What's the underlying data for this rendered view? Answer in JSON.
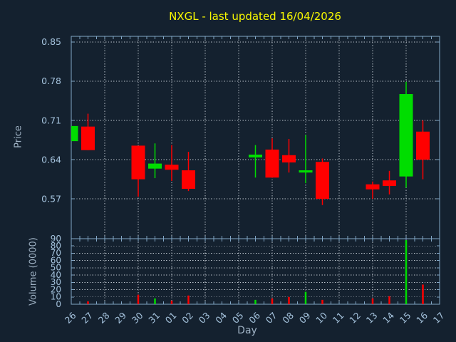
{
  "colors": {
    "background": "#14212f",
    "frame": "#82a6c6",
    "grid": "#bcc4cc",
    "title": "#f8f800",
    "tick_text": "#a5c3dd",
    "axis_text": "#9fb2c4",
    "up": "#00dd00",
    "down": "#ff0000"
  },
  "chart_data": {
    "type": "candlestick",
    "title": "NXGL - last updated 16/04/2026",
    "xlabel": "Day",
    "categories": [
      "26",
      "27",
      "28",
      "29",
      "30",
      "31",
      "01",
      "02",
      "03",
      "04",
      "05",
      "06",
      "07",
      "08",
      "09",
      "10",
      "11",
      "12",
      "13",
      "14",
      "15",
      "16",
      "17"
    ],
    "grid": "dotted, every 2 days vertical",
    "price_axis": {
      "label": "Price",
      "ticks": [
        0.85,
        0.78,
        0.71,
        0.64,
        0.57
      ],
      "ylim": [
        0.499,
        0.86
      ]
    },
    "volume_axis": {
      "label": "Volume (0000)",
      "ticks": [
        90,
        80,
        70,
        60,
        50,
        40,
        30,
        20,
        10,
        0
      ],
      "ylim": [
        0,
        90
      ]
    },
    "candles": [
      {
        "day": "26",
        "open": 0.673,
        "high": 0.7,
        "low": 0.673,
        "close": 0.7,
        "volume": 0
      },
      {
        "day": "27",
        "open": 0.699,
        "high": 0.722,
        "low": 0.657,
        "close": 0.657,
        "volume": 4
      },
      {
        "day": "30",
        "open": 0.665,
        "high": 0.665,
        "low": 0.574,
        "close": 0.605,
        "volume": 13
      },
      {
        "day": "31",
        "open": 0.624,
        "high": 0.669,
        "low": 0.607,
        "close": 0.633,
        "volume": 8
      },
      {
        "day": "01",
        "open": 0.631,
        "high": 0.666,
        "low": 0.602,
        "close": 0.622,
        "volume": 5
      },
      {
        "day": "02",
        "open": 0.621,
        "high": 0.654,
        "low": 0.584,
        "close": 0.588,
        "volume": 12
      },
      {
        "day": "06",
        "open": 0.644,
        "high": 0.666,
        "low": 0.608,
        "close": 0.649,
        "volume": 6
      },
      {
        "day": "07",
        "open": 0.658,
        "high": 0.678,
        "low": 0.608,
        "close": 0.608,
        "volume": 8
      },
      {
        "day": "08",
        "open": 0.648,
        "high": 0.677,
        "low": 0.617,
        "close": 0.635,
        "volume": 10
      },
      {
        "day": "09",
        "open": 0.617,
        "high": 0.684,
        "low": 0.598,
        "close": 0.621,
        "volume": 17
      },
      {
        "day": "10",
        "open": 0.636,
        "high": 0.642,
        "low": 0.559,
        "close": 0.57,
        "volume": 6
      },
      {
        "day": "13",
        "open": 0.596,
        "high": 0.601,
        "low": 0.57,
        "close": 0.587,
        "volume": 8
      },
      {
        "day": "14",
        "open": 0.603,
        "high": 0.62,
        "low": 0.578,
        "close": 0.593,
        "volume": 11
      },
      {
        "day": "15",
        "open": 0.61,
        "high": 0.779,
        "low": 0.59,
        "close": 0.757,
        "volume": 88
      },
      {
        "day": "16",
        "open": 0.69,
        "high": 0.71,
        "low": 0.605,
        "close": 0.64,
        "volume": 27
      }
    ]
  }
}
